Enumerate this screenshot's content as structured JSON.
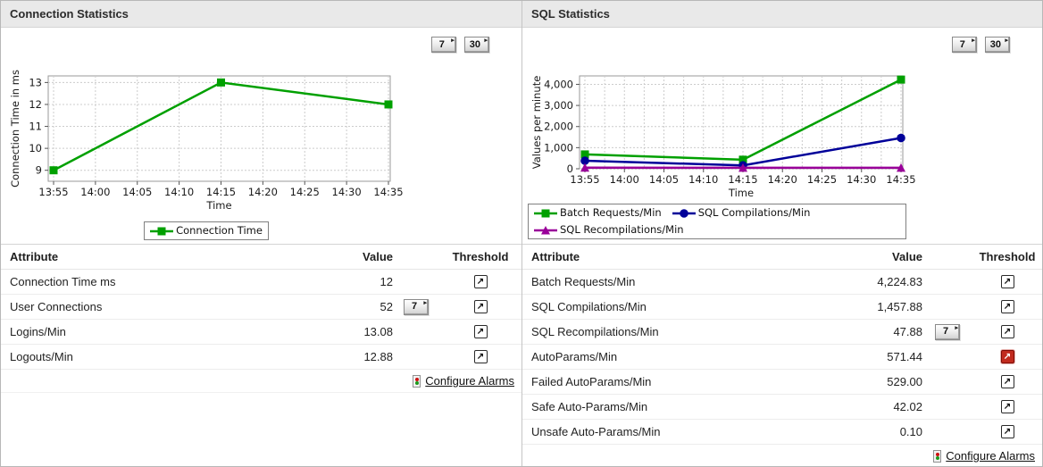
{
  "icons": {
    "report_arrow": "▸",
    "threshold": "↗",
    "threshold_icon_name": "box-arrow-up-right-icon",
    "configure_alarms_icon_name": "traffic-light-icon"
  },
  "colors": {
    "green": "#00a000",
    "navy": "#000099",
    "purple": "#990099",
    "alarm_red": "#c12a1e",
    "grid": "#cccccc",
    "plot_border": "#9a9a9a"
  },
  "panels": [
    {
      "title": "Connection Statistics",
      "report_buttons": [
        "7",
        "30"
      ],
      "table": {
        "headers": [
          "Attribute",
          "Value",
          "Threshold"
        ],
        "rows": [
          {
            "attribute": "Connection Time ms",
            "value": "12",
            "week_button": false,
            "threshold_state": "normal"
          },
          {
            "attribute": "User Connections",
            "value": "52",
            "week_button": true,
            "week_button_label": "7",
            "threshold_state": "normal"
          },
          {
            "attribute": "Logins/Min",
            "value": "13.08",
            "week_button": false,
            "threshold_state": "normal"
          },
          {
            "attribute": "Logouts/Min",
            "value": "12.88",
            "week_button": false,
            "threshold_state": "normal"
          }
        ],
        "footer_link": "Configure Alarms"
      }
    },
    {
      "title": "SQL Statistics",
      "report_buttons": [
        "7",
        "30"
      ],
      "table": {
        "headers": [
          "Attribute",
          "Value",
          "Threshold"
        ],
        "rows": [
          {
            "attribute": "Batch Requests/Min",
            "value": "4,224.83",
            "week_button": false,
            "threshold_state": "normal"
          },
          {
            "attribute": "SQL Compilations/Min",
            "value": "1,457.88",
            "week_button": false,
            "threshold_state": "normal"
          },
          {
            "attribute": "SQL Recompilations/Min",
            "value": "47.88",
            "week_button": true,
            "week_button_label": "7",
            "threshold_state": "normal"
          },
          {
            "attribute": "AutoParams/Min",
            "value": "571.44",
            "week_button": false,
            "threshold_state": "alarm"
          },
          {
            "attribute": "Failed AutoParams/Min",
            "value": "529.00",
            "week_button": false,
            "threshold_state": "normal"
          },
          {
            "attribute": "Safe Auto-Params/Min",
            "value": "42.02",
            "week_button": false,
            "threshold_state": "normal"
          },
          {
            "attribute": "Unsafe Auto-Params/Min",
            "value": "0.10",
            "week_button": false,
            "threshold_state": "normal"
          }
        ],
        "footer_link": "Configure Alarms"
      }
    }
  ],
  "chart_data": [
    {
      "type": "line",
      "title": "",
      "xlabel": "Time",
      "ylabel": "Connection Time in ms",
      "categories": [
        "13:55",
        "14:00",
        "14:05",
        "14:10",
        "14:15",
        "14:20",
        "14:25",
        "14:30",
        "14:35"
      ],
      "ylim": [
        8.5,
        13.3
      ],
      "ytick_values": [
        9,
        10,
        11,
        12,
        13
      ],
      "ytick_labels": [
        "9",
        "10",
        "11",
        "12",
        "13"
      ],
      "grid": true,
      "minor_x_gridlines": false,
      "legend_position": "bottom-center",
      "series": [
        {
          "name": "Connection Time",
          "color": "#00a000",
          "marker": "square",
          "points": [
            [
              "13:55",
              9
            ],
            [
              "14:15",
              13
            ],
            [
              "14:35",
              12
            ]
          ]
        }
      ]
    },
    {
      "type": "line",
      "title": "",
      "xlabel": "Time",
      "ylabel": "Values per minute",
      "categories": [
        "13:55",
        "14:00",
        "14:05",
        "14:10",
        "14:15",
        "14:20",
        "14:25",
        "14:30",
        "14:35"
      ],
      "ylim": [
        0,
        4400
      ],
      "ytick_values": [
        0,
        1000,
        2000,
        3000,
        4000
      ],
      "ytick_labels": [
        "0",
        "1,000",
        "2,000",
        "3,000",
        "4,000"
      ],
      "grid": true,
      "minor_x_gridlines": true,
      "legend_position": "bottom-left",
      "series": [
        {
          "name": "Batch Requests/Min",
          "color": "#00a000",
          "marker": "square",
          "points": [
            [
              "13:55",
              680
            ],
            [
              "14:15",
              430
            ],
            [
              "14:35",
              4224.83
            ]
          ]
        },
        {
          "name": "SQL Compilations/Min",
          "color": "#000099",
          "marker": "circle",
          "points": [
            [
              "13:55",
              380
            ],
            [
              "14:15",
              160
            ],
            [
              "14:35",
              1457.88
            ]
          ]
        },
        {
          "name": "SQL Recompilations/Min",
          "color": "#990099",
          "marker": "triangle",
          "points": [
            [
              "13:55",
              55
            ],
            [
              "14:15",
              45
            ],
            [
              "14:35",
              47.88
            ]
          ]
        }
      ]
    }
  ]
}
